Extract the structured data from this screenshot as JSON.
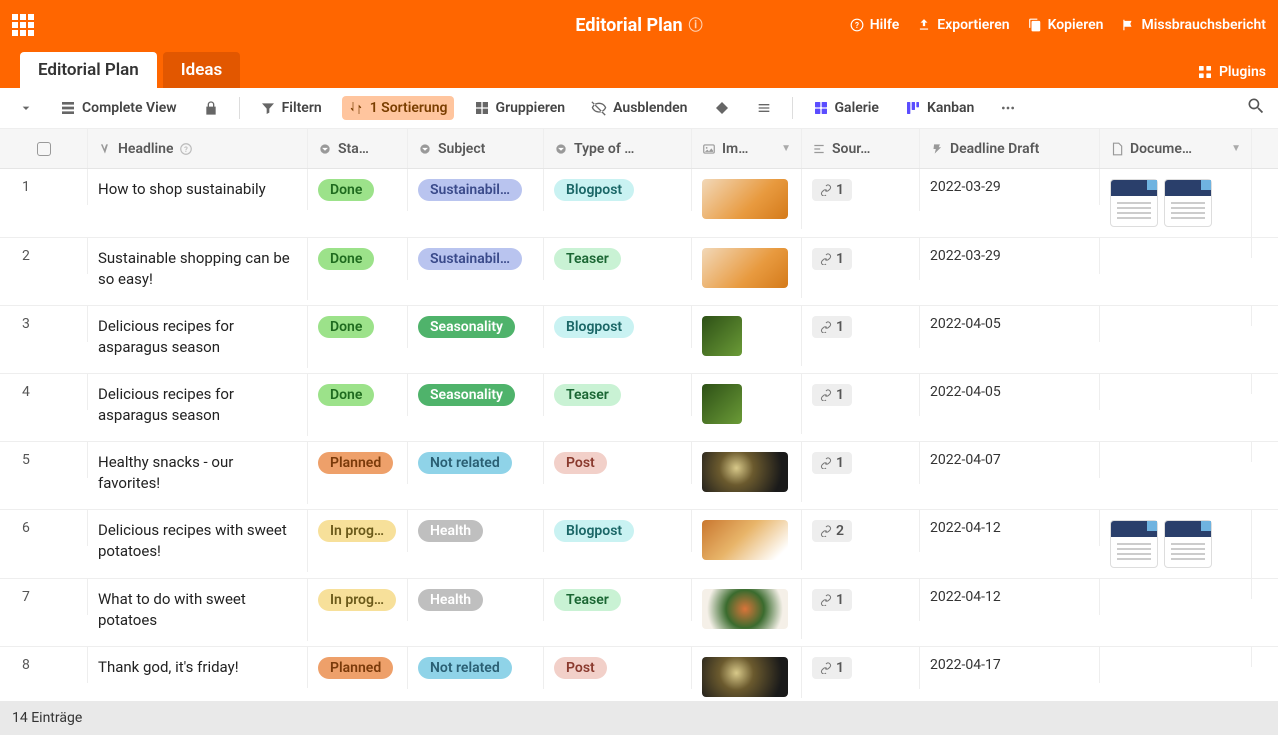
{
  "colors": {
    "brand": "#ff6600",
    "tab_inactive": "#e25700",
    "sort_bg": "#ffc59e"
  },
  "topbar": {
    "title": "Editorial Plan",
    "help": "Hilfe",
    "export": "Exportieren",
    "copy": "Kopieren",
    "abuse": "Missbrauchsbericht"
  },
  "tabs": {
    "main": "Editorial Plan",
    "ideas": "Ideas",
    "plugins": "Plugins"
  },
  "toolbar": {
    "view": "Complete View",
    "filter": "Filtern",
    "sort": "1 Sortierung",
    "group": "Gruppieren",
    "hide": "Ausblenden",
    "gallery": "Galerie",
    "kanban": "Kanban"
  },
  "columns": {
    "headline": "Headline",
    "status": "Sta…",
    "subject": "Subject",
    "type": "Type of …",
    "image": "Im…",
    "sources": "Sour…",
    "deadline": "Deadline Draft",
    "documents": "Docume…"
  },
  "pill_styles": {
    "Done": {
      "bg": "#9ce28a",
      "fg": "#1f6b1f"
    },
    "Planned": {
      "bg": "#eea06a",
      "fg": "#7a3a0a"
    },
    "In progress": {
      "bg": "#f7e09a",
      "fg": "#6b5a1a"
    },
    "Sustainability": {
      "bg": "#b9c4ef",
      "fg": "#3a4a8a"
    },
    "Seasonality": {
      "bg": "#4fb36b",
      "fg": "#ffffff"
    },
    "Not related": {
      "bg": "#8fd3e8",
      "fg": "#2a5f73"
    },
    "Health": {
      "bg": "#bfbfbf",
      "fg": "#ffffff"
    },
    "Blogpost": {
      "bg": "#c9f2f2",
      "fg": "#1a6666"
    },
    "Teaser": {
      "bg": "#c9f2d4",
      "fg": "#1a6633"
    },
    "Post": {
      "bg": "#f2d0c9",
      "fg": "#8a3a2e"
    }
  },
  "rows": [
    {
      "num": "1",
      "headline": "How to shop sustainabily",
      "status": "Done",
      "status_disp": "Done",
      "subject": "Sustainability",
      "subject_disp": "Sustainabil…",
      "type": "Blogpost",
      "thumb": "t-orange",
      "sources": "1",
      "deadline": "2022-03-29",
      "docs": 2
    },
    {
      "num": "2",
      "headline": "Sustainable shopping can be so easy!",
      "status": "Done",
      "status_disp": "Done",
      "subject": "Sustainability",
      "subject_disp": "Sustainabil…",
      "type": "Teaser",
      "thumb": "t-orange",
      "sources": "1",
      "deadline": "2022-03-29",
      "docs": 0
    },
    {
      "num": "3",
      "headline": "Delicious recipes for asparagus season",
      "status": "Done",
      "status_disp": "Done",
      "subject": "Seasonality",
      "subject_disp": "Seasonality",
      "type": "Blogpost",
      "thumb": "t-green",
      "sources": "1",
      "deadline": "2022-04-05",
      "docs": 0
    },
    {
      "num": "4",
      "headline": "Delicious recipes for asparagus season",
      "status": "Done",
      "status_disp": "Done",
      "subject": "Seasonality",
      "subject_disp": "Seasonality",
      "type": "Teaser",
      "thumb": "t-green",
      "sources": "1",
      "deadline": "2022-04-05",
      "docs": 0
    },
    {
      "num": "5",
      "headline": "Healthy snacks - our favorites!",
      "status": "Planned",
      "status_disp": "Planned",
      "subject": "Not related",
      "subject_disp": "Not related",
      "type": "Post",
      "thumb": "t-dark",
      "sources": "1",
      "deadline": "2022-04-07",
      "docs": 0
    },
    {
      "num": "6",
      "headline": "Delicious recipes with sweet potatoes!",
      "status": "In progress",
      "status_disp": "In prog…",
      "subject": "Health",
      "subject_disp": "Health",
      "type": "Blogpost",
      "thumb": "t-sweet",
      "sources": "2",
      "deadline": "2022-04-12",
      "docs": 2
    },
    {
      "num": "7",
      "headline": "What to do with sweet potatoes",
      "status": "In progress",
      "status_disp": "In prog…",
      "subject": "Health",
      "subject_disp": "Health",
      "type": "Teaser",
      "thumb": "t-bowl",
      "sources": "1",
      "deadline": "2022-04-12",
      "docs": 0
    },
    {
      "num": "8",
      "headline": "Thank god, it's friday!",
      "status": "Planned",
      "status_disp": "Planned",
      "subject": "Not related",
      "subject_disp": "Not related",
      "type": "Post",
      "thumb": "t-dark",
      "sources": "1",
      "deadline": "2022-04-17",
      "docs": 0
    }
  ],
  "footer": {
    "count": "14 Einträge"
  }
}
